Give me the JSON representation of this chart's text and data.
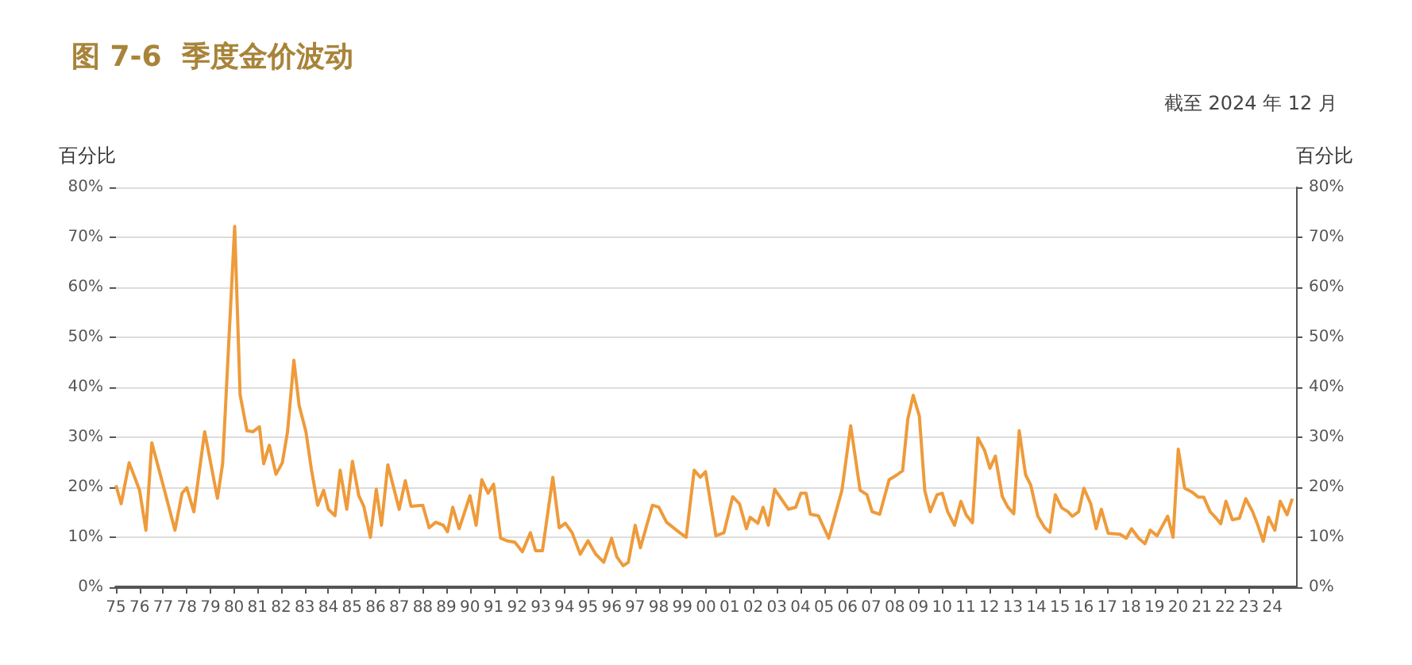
{
  "chart_data": {
    "type": "line",
    "title": "图 7-6  季度金价波动",
    "subtitle": "截至 2024 年 12 月",
    "ylabel": "百分比",
    "y2label": "百分比",
    "series": [
      {
        "color": "#ee9b3b",
        "x": [
          1975.0,
          1975.22,
          1975.56,
          1976.0,
          1976.27,
          1976.52,
          1977.0,
          1977.5,
          1977.8,
          1978.0,
          1978.3,
          1978.76,
          1979.3,
          1979.52,
          1980.03,
          1980.26,
          1980.55,
          1980.8,
          1981.08,
          1981.26,
          1981.5,
          1981.78,
          1982.05,
          1982.27,
          1982.54,
          1982.76,
          1983.05,
          1983.28,
          1983.55,
          1983.8,
          1984.0,
          1984.28,
          1984.5,
          1984.78,
          1985.02,
          1985.29,
          1985.5,
          1985.78,
          1986.03,
          1986.25,
          1986.52,
          1987.0,
          1987.26,
          1987.5,
          1988.0,
          1988.27,
          1988.55,
          1988.87,
          1989.05,
          1989.27,
          1989.54,
          1990.0,
          1990.26,
          1990.5,
          1990.77,
          1991.0,
          1991.3,
          1991.56,
          1991.9,
          1992.22,
          1992.56,
          1992.78,
          1993.07,
          1993.51,
          1993.78,
          1994.04,
          1994.33,
          1994.67,
          1995.0,
          1995.33,
          1995.67,
          1996.0,
          1996.22,
          1996.49,
          1996.71,
          1997.0,
          1997.22,
          1997.73,
          1998.0,
          1998.33,
          1998.89,
          1999.16,
          1999.5,
          1999.76,
          1999.98,
          2000.42,
          2000.76,
          2001.13,
          2001.42,
          2001.71,
          2001.87,
          2002.2,
          2002.42,
          2002.64,
          2002.91,
          2003.49,
          2003.8,
          2004.02,
          2004.24,
          2004.42,
          2004.76,
          2005.2,
          2005.76,
          2006.13,
          2006.53,
          2006.82,
          2007.04,
          2007.36,
          2007.76,
          2008.1,
          2008.33,
          2008.55,
          2008.78,
          2009.04,
          2009.27,
          2009.5,
          2009.79,
          2010.01,
          2010.24,
          2010.53,
          2010.8,
          2011.02,
          2011.29,
          2011.52,
          2011.81,
          2012.03,
          2012.26,
          2012.55,
          2012.78,
          2013.04,
          2013.27,
          2013.54,
          2013.76,
          2014.06,
          2014.35,
          2014.57,
          2014.8,
          2015.07,
          2015.34,
          2015.52,
          2015.79,
          2016.01,
          2016.3,
          2016.53,
          2016.75,
          2017.04,
          2017.54,
          2017.81,
          2018.03,
          2018.33,
          2018.6,
          2018.82,
          2019.11,
          2019.56,
          2019.79,
          2020.01,
          2020.28,
          2020.57,
          2020.87,
          2021.09,
          2021.36,
          2021.58,
          2021.81,
          2022.03,
          2022.3,
          2022.6,
          2022.87,
          2023.16,
          2023.38,
          2023.61,
          2023.83,
          2024.1,
          2024.33,
          2024.62,
          2024.84
        ],
        "values": [
          20.4,
          16.7,
          24.9,
          19.4,
          11.4,
          28.9,
          20.4,
          11.4,
          18.8,
          19.9,
          15.1,
          31.1,
          17.8,
          24.7,
          72.2,
          38.5,
          31.3,
          31.1,
          32.1,
          24.7,
          28.4,
          22.6,
          24.9,
          31.1,
          45.4,
          36.4,
          31.1,
          23.6,
          16.4,
          19.4,
          15.6,
          14.3,
          23.4,
          15.6,
          25.2,
          18.3,
          16.2,
          10.0,
          19.6,
          12.4,
          24.5,
          15.6,
          21.3,
          16.2,
          16.4,
          11.9,
          13.0,
          12.4,
          11.1,
          16.0,
          11.7,
          18.3,
          12.4,
          21.5,
          18.8,
          20.6,
          9.8,
          9.3,
          9.0,
          7.1,
          10.9,
          7.3,
          7.3,
          22.0,
          11.9,
          12.8,
          10.9,
          6.6,
          9.3,
          6.6,
          5.0,
          9.8,
          6.1,
          4.3,
          5.0,
          12.4,
          7.9,
          16.4,
          16.0,
          13.0,
          10.9,
          10.0,
          23.4,
          22.0,
          23.1,
          10.3,
          10.9,
          18.1,
          16.7,
          11.7,
          14.0,
          12.8,
          16.0,
          12.4,
          19.6,
          15.6,
          16.0,
          18.8,
          18.8,
          14.6,
          14.3,
          9.8,
          19.4,
          32.3,
          19.4,
          18.5,
          15.1,
          14.6,
          21.5,
          22.5,
          23.3,
          33.6,
          38.4,
          34.2,
          19.3,
          15.1,
          18.5,
          18.8,
          15.1,
          12.4,
          17.2,
          14.5,
          12.9,
          29.9,
          27.3,
          23.8,
          26.2,
          18.2,
          16.1,
          14.7,
          31.3,
          22.5,
          20.4,
          14.2,
          11.9,
          11.0,
          18.5,
          15.9,
          15.1,
          14.2,
          15.1,
          19.8,
          16.7,
          11.7,
          15.6,
          10.8,
          10.6,
          9.8,
          11.7,
          9.8,
          8.7,
          11.4,
          10.3,
          14.2,
          10.0,
          27.6,
          19.8,
          19.1,
          18.0,
          18.0,
          15.1,
          14.0,
          12.7,
          17.2,
          13.5,
          13.8,
          17.7,
          15.1,
          12.4,
          9.2,
          14.0,
          11.4,
          17.2,
          14.5,
          17.7
        ]
      }
    ],
    "xlim": [
      1975,
      2025
    ],
    "xticks": [
      {
        "value": 1975,
        "label": "75"
      },
      {
        "value": 1976,
        "label": "76"
      },
      {
        "value": 1977,
        "label": "77"
      },
      {
        "value": 1978,
        "label": "78"
      },
      {
        "value": 1979,
        "label": "79"
      },
      {
        "value": 1980,
        "label": "80"
      },
      {
        "value": 1981,
        "label": "81"
      },
      {
        "value": 1982,
        "label": "82"
      },
      {
        "value": 1983,
        "label": "83"
      },
      {
        "value": 1984,
        "label": "84"
      },
      {
        "value": 1985,
        "label": "85"
      },
      {
        "value": 1986,
        "label": "86"
      },
      {
        "value": 1987,
        "label": "87"
      },
      {
        "value": 1988,
        "label": "88"
      },
      {
        "value": 1989,
        "label": "89"
      },
      {
        "value": 1990,
        "label": "90"
      },
      {
        "value": 1991,
        "label": "91"
      },
      {
        "value": 1992,
        "label": "92"
      },
      {
        "value": 1993,
        "label": "93"
      },
      {
        "value": 1994,
        "label": "94"
      },
      {
        "value": 1995,
        "label": "95"
      },
      {
        "value": 1996,
        "label": "96"
      },
      {
        "value": 1997,
        "label": "97"
      },
      {
        "value": 1998,
        "label": "98"
      },
      {
        "value": 1999,
        "label": "99"
      },
      {
        "value": 2000,
        "label": "00"
      },
      {
        "value": 2001,
        "label": "01"
      },
      {
        "value": 2002,
        "label": "02"
      },
      {
        "value": 2003,
        "label": "03"
      },
      {
        "value": 2004,
        "label": "04"
      },
      {
        "value": 2005,
        "label": "05"
      },
      {
        "value": 2006,
        "label": "06"
      },
      {
        "value": 2007,
        "label": "07"
      },
      {
        "value": 2008,
        "label": "08"
      },
      {
        "value": 2009,
        "label": "09"
      },
      {
        "value": 2010,
        "label": "10"
      },
      {
        "value": 2011,
        "label": "11"
      },
      {
        "value": 2012,
        "label": "12"
      },
      {
        "value": 2013,
        "label": "13"
      },
      {
        "value": 2014,
        "label": "14"
      },
      {
        "value": 2015,
        "label": "15"
      },
      {
        "value": 2016,
        "label": "16"
      },
      {
        "value": 2017,
        "label": "17"
      },
      {
        "value": 2018,
        "label": "18"
      },
      {
        "value": 2019,
        "label": "19"
      },
      {
        "value": 2020,
        "label": "20"
      },
      {
        "value": 2021,
        "label": "21"
      },
      {
        "value": 2022,
        "label": "22"
      },
      {
        "value": 2023,
        "label": "23"
      },
      {
        "value": 2024,
        "label": "24"
      }
    ],
    "ylim": [
      0,
      80
    ],
    "yticks": [
      {
        "value": 0,
        "label": "0%"
      },
      {
        "value": 10,
        "label": "10%"
      },
      {
        "value": 20,
        "label": "20%"
      },
      {
        "value": 30,
        "label": "30%"
      },
      {
        "value": 40,
        "label": "40%"
      },
      {
        "value": 50,
        "label": "50%"
      },
      {
        "value": 60,
        "label": "60%"
      },
      {
        "value": 70,
        "label": "70%"
      },
      {
        "value": 80,
        "label": "80%"
      }
    ],
    "y2lim": [
      0,
      80
    ],
    "y2ticks": [
      {
        "value": 0,
        "label": "0%"
      },
      {
        "value": 10,
        "label": "10%"
      },
      {
        "value": 20,
        "label": "20%"
      },
      {
        "value": 30,
        "label": "30%"
      },
      {
        "value": 40,
        "label": "40%"
      },
      {
        "value": 50,
        "label": "50%"
      },
      {
        "value": 60,
        "label": "60%"
      },
      {
        "value": 70,
        "label": "70%"
      },
      {
        "value": 80,
        "label": "80%"
      }
    ],
    "grid": "y",
    "marker": "none",
    "line_style": "solid"
  }
}
